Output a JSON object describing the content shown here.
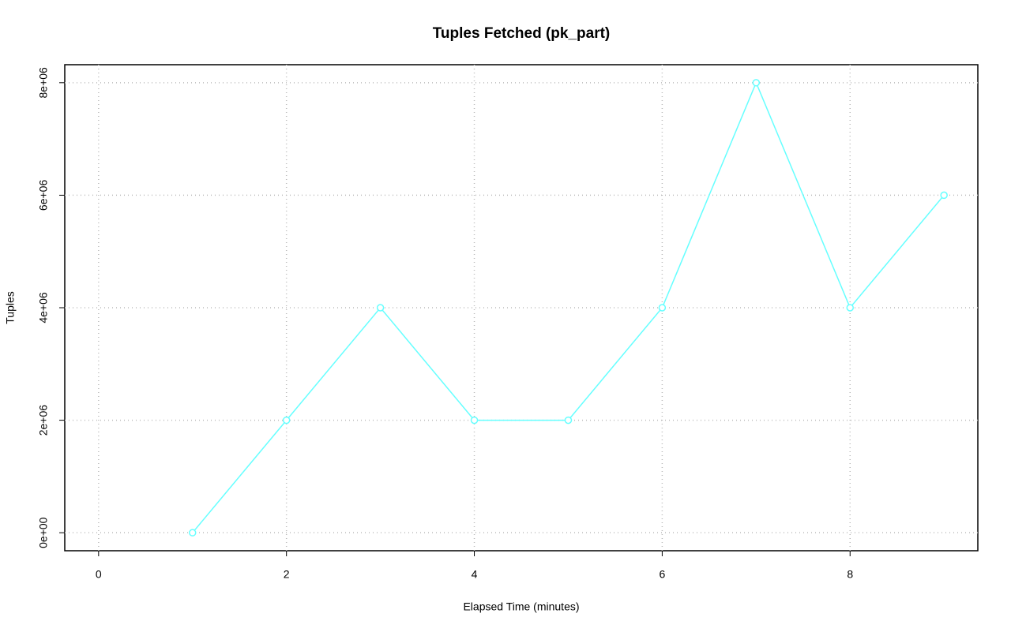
{
  "chart_data": {
    "type": "line",
    "title": "Tuples Fetched (pk_part)",
    "xlabel": "Elapsed Time (minutes)",
    "ylabel": "Tuples",
    "x": [
      1,
      2,
      3,
      4,
      5,
      6,
      7,
      8,
      9
    ],
    "values": [
      0,
      2000000,
      4000000,
      2000000,
      2000000,
      4000000,
      8000000,
      4000000,
      6000000
    ],
    "color": "#66ffff",
    "xlim": [
      -0.36,
      9.36
    ],
    "xticks": [
      0,
      2,
      4,
      6,
      8
    ],
    "ylim": [
      -320000,
      8320000
    ],
    "yticks": [
      {
        "value": 0,
        "label": "0e+00"
      },
      {
        "value": 2000000,
        "label": "2e+06"
      },
      {
        "value": 4000000,
        "label": "4e+06"
      },
      {
        "value": 6000000,
        "label": "6e+06"
      },
      {
        "value": 8000000,
        "label": "8e+06"
      }
    ],
    "grid": true
  }
}
